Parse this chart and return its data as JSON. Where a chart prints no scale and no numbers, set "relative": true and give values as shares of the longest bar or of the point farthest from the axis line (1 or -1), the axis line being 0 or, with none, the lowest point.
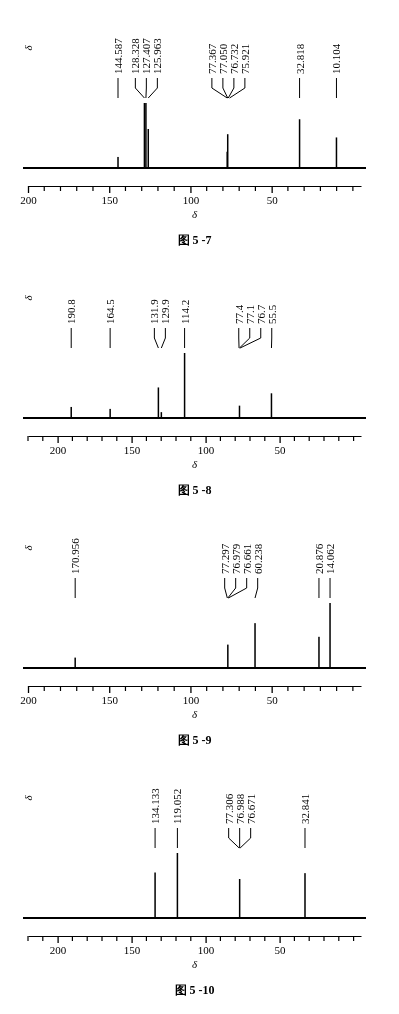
{
  "chart_data": [
    {
      "type": "bar",
      "title": "图 5 -7",
      "xlabel": "δ",
      "ylabel": "δ",
      "relative": true,
      "color": "#000000",
      "x": [
        144.587,
        128.328,
        127.407,
        125.963,
        77.367,
        77.05,
        76.732,
        75.921,
        32.818,
        10.104
      ],
      "values": [
        0.17,
        1,
        1,
        0.6,
        0.25,
        0.52,
        null,
        null,
        0.75,
        0.47
      ],
      "xlim": [
        200,
        -5
      ],
      "xticks": [
        200,
        150,
        100,
        50
      ],
      "annotations": [
        {
          "text": "144.587",
          "x": 144.587
        },
        {
          "text": "128.328",
          "x": 128.328
        },
        {
          "text": "127.407",
          "x": 127.407
        },
        {
          "text": "125.963",
          "x": 125.963
        },
        {
          "text": "77.367",
          "x": 77.367
        },
        {
          "text": "77.050",
          "x": 77.05
        },
        {
          "text": "76.732",
          "x": 76.732
        },
        {
          "text": "75.921",
          "x": 75.921
        },
        {
          "text": "32.818",
          "x": 32.818
        },
        {
          "text": "10.104",
          "x": 10.104
        }
      ]
    },
    {
      "type": "bar",
      "title": "图 5 -8",
      "xlabel": "δ",
      "ylabel": "δ",
      "relative": true,
      "color": "#000000",
      "x": [
        190.8,
        164.5,
        131.9,
        129.9,
        114.2,
        77.4,
        77.1,
        76.7,
        55.5
      ],
      "values": [
        0.17,
        0.14,
        0.47,
        0.09,
        1,
        null,
        0.19,
        null,
        0.38
      ],
      "xlim": [
        220,
        -5
      ],
      "xticks": [
        200,
        150,
        100,
        50
      ],
      "annotations": [
        {
          "text": "190.8",
          "x": 190.8
        },
        {
          "text": "164.5",
          "x": 164.5
        },
        {
          "text": "131.9",
          "x": 131.9
        },
        {
          "text": "129.9",
          "x": 129.9
        },
        {
          "text": "114.2",
          "x": 114.2
        },
        {
          "text": "77.4",
          "x": 77.4
        },
        {
          "text": "77.1",
          "x": 77.1
        },
        {
          "text": "76.7",
          "x": 76.7
        },
        {
          "text": "55.5",
          "x": 55.5
        }
      ]
    },
    {
      "type": "bar",
      "title": "图 5 -9",
      "xlabel": "δ",
      "ylabel": "δ",
      "relative": true,
      "color": "#000000",
      "x": [
        170.956,
        77.297,
        76.979,
        76.661,
        60.238,
        20.876,
        14.062
      ],
      "values": [
        0.16,
        null,
        0.36,
        null,
        0.69,
        0.48,
        1
      ],
      "xlim": [
        200,
        -5
      ],
      "xticks": [
        200,
        150,
        100,
        50
      ],
      "annotations": [
        {
          "text": "170.956",
          "x": 170.956
        },
        {
          "text": "77.297",
          "x": 77.297
        },
        {
          "text": "76.979",
          "x": 76.979
        },
        {
          "text": "76.661",
          "x": 76.661
        },
        {
          "text": "60.238",
          "x": 60.238
        },
        {
          "text": "20.876",
          "x": 20.876
        },
        {
          "text": "14.062",
          "x": 14.062
        }
      ]
    },
    {
      "type": "bar",
      "title": "图 5 -10",
      "xlabel": "δ",
      "ylabel": "δ",
      "relative": true,
      "color": "#000000",
      "x": [
        134.133,
        119.052,
        77.306,
        76.988,
        76.671,
        32.841
      ],
      "values": [
        0.7,
        1,
        null,
        0.6,
        null,
        0.69
      ],
      "xlim": [
        220,
        -5
      ],
      "xticks": [
        200,
        150,
        100,
        50
      ],
      "annotations": [
        {
          "text": "134.133",
          "x": 134.133
        },
        {
          "text": "119.052",
          "x": 119.052
        },
        {
          "text": "77.306",
          "x": 77.306
        },
        {
          "text": "76.988",
          "x": 76.988
        },
        {
          "text": "76.671",
          "x": 76.671
        },
        {
          "text": "32.841",
          "x": 32.841
        }
      ]
    }
  ]
}
